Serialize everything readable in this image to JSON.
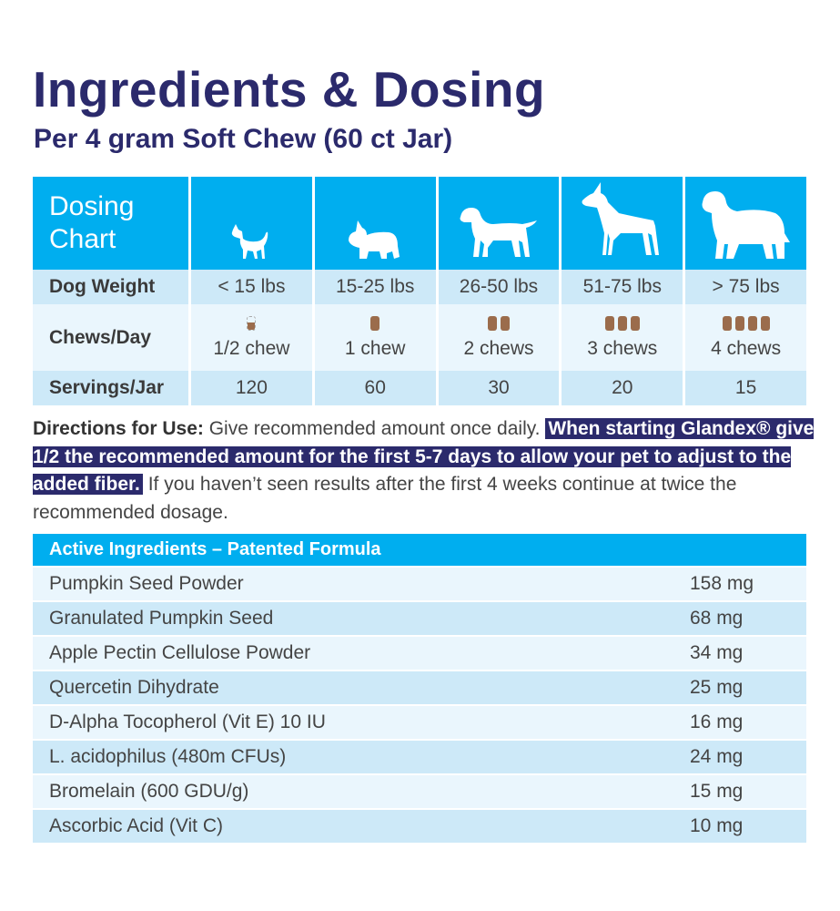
{
  "title": "Ingredients & Dosing",
  "subtitle": "Per 4 gram Soft Chew (60 ct Jar)",
  "colors": {
    "navy": "#2b2a6c",
    "header_blue": "#00aeef",
    "row_light": "#eaf6fd",
    "row_mid": "#cde9f8",
    "chew_brown": "#9b6c4c"
  },
  "dosing": {
    "heading": "Dosing\nChart",
    "row_labels": {
      "weight": "Dog Weight",
      "chews": "Chews/Day",
      "servings": "Servings/Jar"
    },
    "columns": [
      {
        "icon": "chihuahua-icon",
        "weight": "< 15 lbs",
        "chews_count": 0.5,
        "chews": "1/2 chew",
        "servings": "120"
      },
      {
        "icon": "bulldog-icon",
        "weight": "15-25 lbs",
        "chews_count": 1,
        "chews": "1 chew",
        "servings": "60"
      },
      {
        "icon": "labrador-icon",
        "weight": "26-50 lbs",
        "chews_count": 2,
        "chews": "2 chews",
        "servings": "30"
      },
      {
        "icon": "doberman-icon",
        "weight": "51-75 lbs",
        "chews_count": 3,
        "chews": "3 chews",
        "servings": "20"
      },
      {
        "icon": "newfoundland-icon",
        "weight": "> 75 lbs",
        "chews_count": 4,
        "chews": "4 chews",
        "servings": "15"
      }
    ]
  },
  "directions": {
    "label": "Directions for Use:",
    "text1": " Give recommended amount once daily. ",
    "highlight": "When starting Glandex® give 1/2 the recommended amount for the first 5-7 days to allow your pet to adjust to the added fiber.",
    "text2": " If you haven’t seen results after the first 4 weeks continue at twice the recommended dosage."
  },
  "ingredients": {
    "heading": "Active Ingredients – Patented Formula",
    "items": [
      {
        "name": "Pumpkin Seed Powder",
        "amount": "158 mg"
      },
      {
        "name": "Granulated Pumpkin Seed",
        "amount": "68 mg"
      },
      {
        "name": "Apple Pectin Cellulose Powder",
        "amount": "34 mg"
      },
      {
        "name": "Quercetin Dihydrate",
        "amount": "25 mg"
      },
      {
        "name": "D-Alpha Tocopherol (Vit E) 10 IU",
        "amount": "16 mg"
      },
      {
        "name": "L. acidophilus (480m CFUs)",
        "amount": "24 mg"
      },
      {
        "name": "Bromelain (600 GDU/g)",
        "amount": "15 mg"
      },
      {
        "name": "Ascorbic Acid (Vit C)",
        "amount": "10 mg"
      }
    ]
  }
}
